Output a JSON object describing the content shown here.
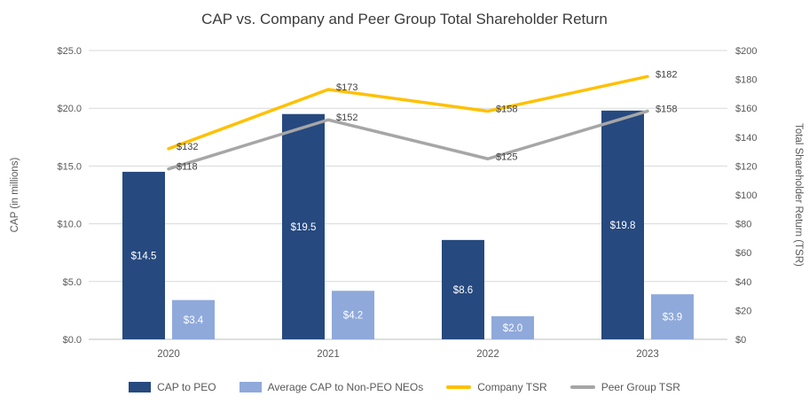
{
  "chart_data": {
    "type": "bar",
    "subtype": "combo-bar-line",
    "title": "CAP vs. Company and Peer Group Total Shareholder Return",
    "categories": [
      "2020",
      "2021",
      "2022",
      "2023"
    ],
    "bar_series": [
      {
        "name": "CAP to PEO",
        "color": "#26497F",
        "values": [
          14.5,
          19.5,
          8.6,
          19.8
        ],
        "labels": [
          "$14.5",
          "$19.5",
          "$8.6",
          "$19.8"
        ]
      },
      {
        "name": "Average CAP to Non-PEO NEOs",
        "color": "#8FA9DB",
        "values": [
          3.4,
          4.2,
          2.0,
          3.9
        ],
        "labels": [
          "$3.4",
          "$4.2",
          "$2.0",
          "$3.9"
        ]
      }
    ],
    "line_series": [
      {
        "name": "Company TSR",
        "color": "#FFC000",
        "values": [
          132,
          173,
          158,
          182
        ],
        "labels": [
          "$132",
          "$173",
          "$158",
          "$182"
        ]
      },
      {
        "name": "Peer Group TSR",
        "color": "#A6A6A6",
        "values": [
          118,
          152,
          125,
          158
        ],
        "labels": [
          "$118",
          "$152",
          "$125",
          "$158"
        ]
      }
    ],
    "left_axis": {
      "label": "CAP (in millions)",
      "min": 0,
      "max": 25,
      "step": 5,
      "ticks": [
        "$0.0",
        "$5.0",
        "$10.0",
        "$15.0",
        "$20.0",
        "$25.0"
      ]
    },
    "right_axis": {
      "label": "Total Shareholder Return (TSR)",
      "min": 0,
      "max": 200,
      "step": 20,
      "ticks": [
        "$0",
        "$20",
        "$40",
        "$60",
        "$80",
        "$100",
        "$120",
        "$140",
        "$160",
        "$180",
        "$200"
      ]
    },
    "style": {
      "gridline_color": "#D9D9D9",
      "baseline_color": "#BFBFBF",
      "axis_text_color": "#595959",
      "data_label_color": "#404040",
      "bar_label_color": "#FFFFFF"
    }
  }
}
